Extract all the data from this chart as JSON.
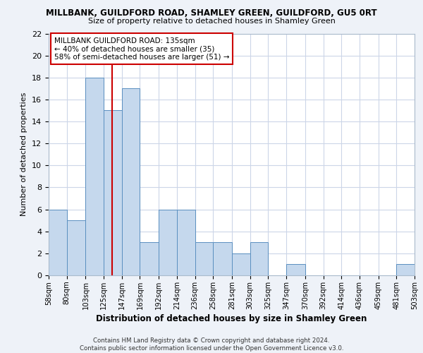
{
  "title_line1": "MILLBANK, GUILDFORD ROAD, SHAMLEY GREEN, GUILDFORD, GU5 0RT",
  "title_line2": "Size of property relative to detached houses in Shamley Green",
  "xlabel": "Distribution of detached houses by size in Shamley Green",
  "ylabel": "Number of detached properties",
  "bar_edges": [
    58,
    80,
    103,
    125,
    147,
    169,
    192,
    214,
    236,
    258,
    281,
    303,
    325,
    347,
    370,
    392,
    414,
    436,
    459,
    481,
    503
  ],
  "bar_heights": [
    6,
    5,
    18,
    15,
    17,
    3,
    6,
    6,
    3,
    3,
    2,
    3,
    0,
    1,
    0,
    0,
    0,
    0,
    0,
    1
  ],
  "bar_color": "#c5d8ed",
  "bar_edgecolor": "#5a8fc0",
  "vline_x": 135,
  "vline_color": "#cc0000",
  "annotation_line1": "MILLBANK GUILDFORD ROAD: 135sqm",
  "annotation_line2": "← 40% of detached houses are smaller (35)",
  "annotation_line3": "58% of semi-detached houses are larger (51) →",
  "ylim": [
    0,
    22
  ],
  "yticks": [
    0,
    2,
    4,
    6,
    8,
    10,
    12,
    14,
    16,
    18,
    20,
    22
  ],
  "tick_labels": [
    "58sqm",
    "80sqm",
    "103sqm",
    "125sqm",
    "147sqm",
    "169sqm",
    "192sqm",
    "214sqm",
    "236sqm",
    "258sqm",
    "281sqm",
    "303sqm",
    "325sqm",
    "347sqm",
    "370sqm",
    "392sqm",
    "414sqm",
    "436sqm",
    "459sqm",
    "481sqm",
    "503sqm"
  ],
  "footer_text": "Contains HM Land Registry data © Crown copyright and database right 2024.\nContains public sector information licensed under the Open Government Licence v3.0.",
  "bg_color": "#eef2f8",
  "plot_bg_color": "#ffffff",
  "grid_color": "#ccd6e8"
}
